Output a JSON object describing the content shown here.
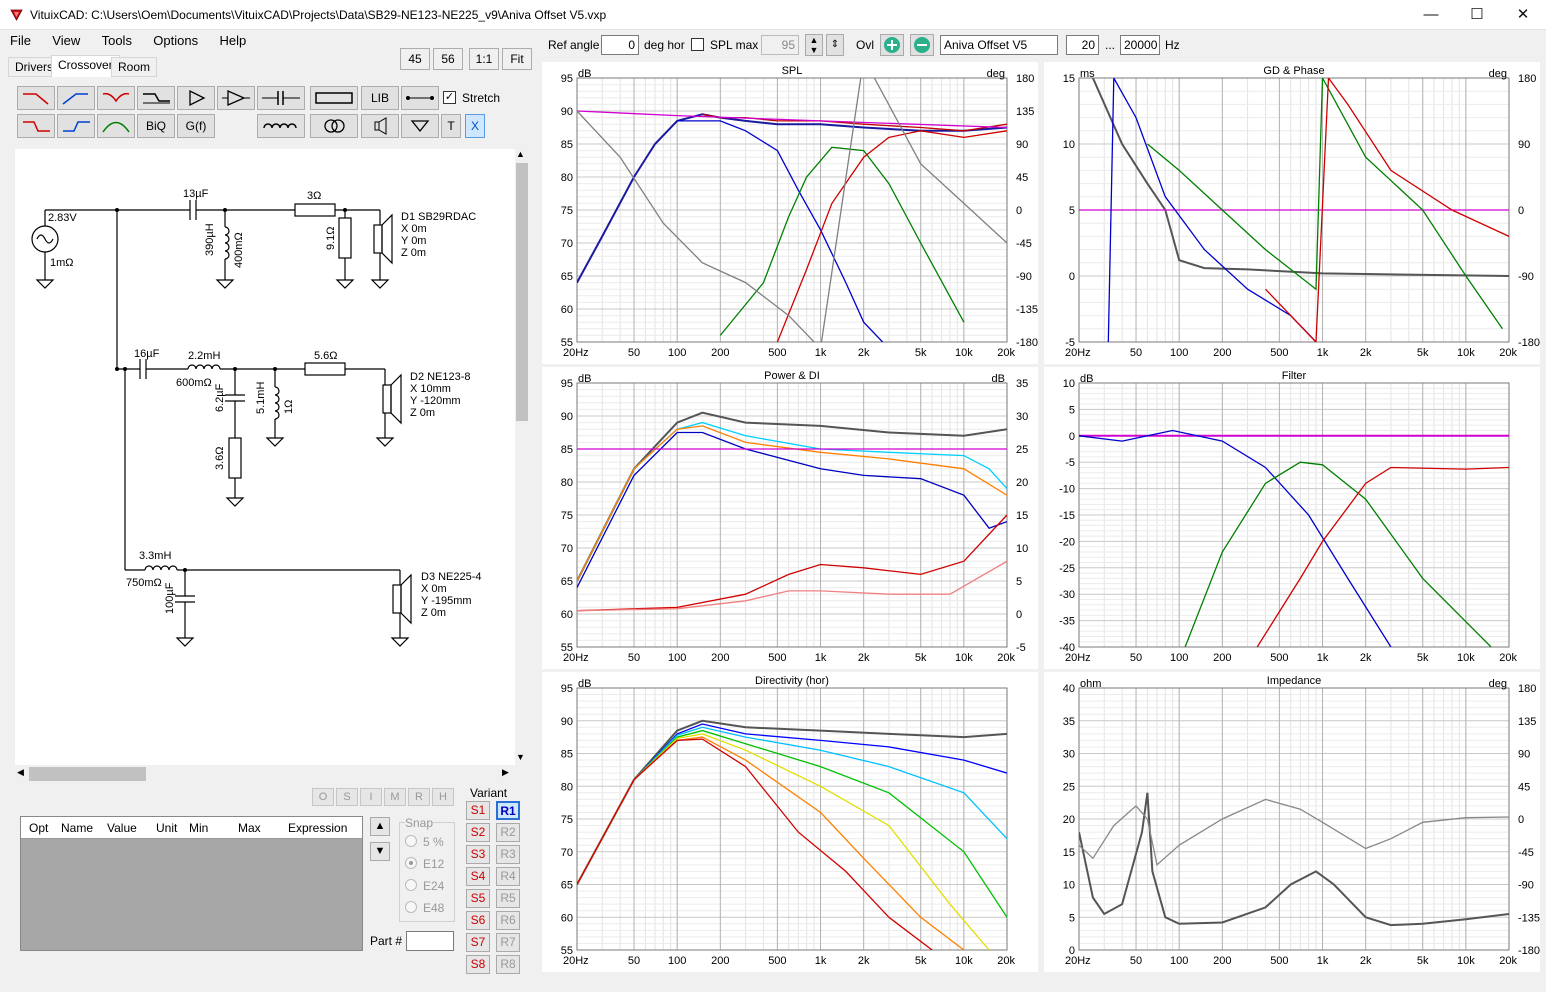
{
  "window": {
    "title": "VituixCAD: C:\\Users\\Oem\\Documents\\VituixCAD\\Projects\\Data\\SB29-NE123-NE225_v9\\Aniva Offset V5.vxp",
    "minimize": "—",
    "maximize": "☐",
    "close": "✕"
  },
  "menu": [
    "File",
    "View",
    "Tools",
    "Options",
    "Help"
  ],
  "tabs": [
    "Drivers",
    "Crossover",
    "Room"
  ],
  "zoom_buttons": [
    "45",
    "56",
    "1:1",
    "Fit"
  ],
  "toolbar": {
    "biq": "BiQ",
    "gf": "G(f)",
    "lib": "LIB",
    "stretch_label": "Stretch",
    "t": "T",
    "x": "X"
  },
  "top_controls": {
    "ref_angle_label": "Ref angle",
    "ref_angle_value": "0",
    "deg_hor_label": "deg hor",
    "spl_max_label": "SPL max",
    "spl_max_value": "95",
    "ovl_label": "Ovl",
    "overlay_name": "Aniva Offset V5",
    "freq_min": "20",
    "ellipsis": "...",
    "freq_max": "20000",
    "hz_label": "Hz"
  },
  "schematic": {
    "source_voltage": "2.83V",
    "source_res": "1mΩ",
    "c1": "13µF",
    "r1": "3Ω",
    "l1": "390µH",
    "l1r": "400mΩ",
    "r2": "9.1Ω",
    "d1_name": "D1 SB29RDAC",
    "d1_x": "X 0m",
    "d1_y": "Y 0m",
    "d1_z": "Z 0m",
    "c2": "16µF",
    "l2": "2.2mH",
    "l2r": "600mΩ",
    "r3": "5.6Ω",
    "c3": "6.2µF",
    "r4": "3.6Ω",
    "l3": "5.1mH",
    "l3r": "1Ω",
    "d2_name": "D2 NE123-8",
    "d2_x": "X 10mm",
    "d2_y": "Y -120mm",
    "d2_z": "Z 0m",
    "l4": "3.3mH",
    "l4r": "750mΩ",
    "c4": "100µF",
    "d3_name": "D3 NE225-4",
    "d3_x": "X 0m",
    "d3_y": "Y -195mm",
    "d3_z": "Z 0m"
  },
  "opt_letters": [
    "O",
    "S",
    "I",
    "M",
    "R",
    "H"
  ],
  "opt_table_headers": [
    "Opt",
    "Name",
    "Value",
    "Unit",
    "Min",
    "Max",
    "Expression"
  ],
  "snap": {
    "title": "Snap",
    "options": [
      "5 %",
      "E12",
      "E24",
      "E48"
    ],
    "selected": "E12"
  },
  "part_label": "Part #",
  "variant": {
    "title": "Variant",
    "s_buttons": [
      "S1",
      "S2",
      "S3",
      "S4",
      "S5",
      "S6",
      "S7",
      "S8"
    ],
    "r_buttons": [
      "R1",
      "R2",
      "R3",
      "R4",
      "R5",
      "R6",
      "R7",
      "R8"
    ],
    "active": "R1"
  },
  "freq_ticks": [
    "20Hz",
    "50",
    "100",
    "200",
    "500",
    "1k",
    "2k",
    "5k",
    "10k",
    "20k"
  ],
  "charts": {
    "spl": {
      "title": "SPL",
      "left_unit": "dB",
      "right_unit": "deg",
      "left_ticks": [
        "95",
        "90",
        "85",
        "80",
        "75",
        "70",
        "65",
        "60",
        "55"
      ],
      "right_ticks": [
        "180",
        "135",
        "90",
        "45",
        "0",
        "-45",
        "-90",
        "-135",
        "-180"
      ]
    },
    "gd": {
      "title": "GD & Phase",
      "left_unit": "ms",
      "right_unit": "deg",
      "left_ticks": [
        "15",
        "10",
        "5",
        "0",
        "-5"
      ],
      "right_ticks": [
        "180",
        "90",
        "0",
        "-90",
        "-180"
      ]
    },
    "power": {
      "title": "Power & DI",
      "left_unit": "dB",
      "right_unit": "dB",
      "left_ticks": [
        "95",
        "90",
        "85",
        "80",
        "75",
        "70",
        "65",
        "60",
        "55"
      ],
      "right_ticks": [
        "35",
        "30",
        "25",
        "20",
        "15",
        "10",
        "5",
        "0",
        "-5"
      ]
    },
    "filter": {
      "title": "Filter",
      "left_unit": "dB",
      "right_unit": "",
      "left_ticks": [
        "10",
        "5",
        "0",
        "-5",
        "-10",
        "-15",
        "-20",
        "-25",
        "-30",
        "-35",
        "-40"
      ],
      "right_ticks": []
    },
    "directivity": {
      "title": "Directivity (hor)",
      "left_unit": "dB",
      "right_unit": "",
      "left_ticks": [
        "95",
        "90",
        "85",
        "80",
        "75",
        "70",
        "65",
        "60",
        "55"
      ],
      "right_ticks": []
    },
    "impedance": {
      "title": "Impedance",
      "left_unit": "ohm",
      "right_unit": "deg",
      "left_ticks": [
        "40",
        "35",
        "30",
        "25",
        "20",
        "15",
        "10",
        "5",
        "0"
      ],
      "right_ticks": [
        "180",
        "135",
        "90",
        "45",
        "0",
        "-45",
        "-90",
        "-135",
        "-180"
      ]
    }
  },
  "chart_data": [
    {
      "type": "line",
      "title": "SPL",
      "xscale": "log",
      "xlim": [
        20,
        20000
      ],
      "ylim": [
        55,
        95
      ],
      "ylabel": "dB",
      "series": [
        {
          "color": "#1a1aa0",
          "x": [
            20,
            30,
            50,
            70,
            100,
            150,
            200,
            300,
            500,
            1000,
            2000,
            5000,
            10000,
            20000
          ],
          "y": [
            64,
            71,
            80,
            85,
            88.5,
            89.5,
            89,
            88.5,
            88,
            88,
            87.5,
            87,
            87,
            87.5
          ]
        },
        {
          "color": "#c00000",
          "x": [
            150,
            200,
            300,
            500,
            1000,
            2000,
            5000,
            10000,
            20000
          ],
          "y": [
            89.5,
            89,
            89,
            88.5,
            88.5,
            88,
            87.5,
            87,
            88
          ]
        },
        {
          "color": "#d000d0",
          "x": [
            20,
            100,
            1000,
            20000
          ],
          "y": [
            90,
            89.3,
            88.5,
            87.5
          ]
        },
        {
          "color": "#0000d0",
          "x": [
            100,
            200,
            300,
            500,
            700,
            1000,
            1500,
            2000,
            3000
          ],
          "y": [
            88.5,
            88.5,
            87,
            84,
            78,
            72,
            64,
            58,
            54
          ]
        },
        {
          "color": "#008000",
          "x": [
            200,
            400,
            600,
            800,
            1200,
            2000,
            3000,
            5000,
            10000
          ],
          "y": [
            56,
            64,
            74,
            80,
            84.5,
            84,
            79,
            70,
            58
          ]
        },
        {
          "color": "#d00000",
          "x": [
            500,
            800,
            1200,
            2000,
            3000,
            5000,
            10000,
            20000
          ],
          "y": [
            55,
            66,
            76,
            83,
            86,
            87,
            86,
            87
          ]
        },
        {
          "color": "#808080",
          "x": [
            20,
            40,
            80,
            150,
            300,
            600,
            1000,
            2000,
            5000,
            10000,
            20000
          ],
          "y": [
            90,
            83,
            73,
            67,
            64,
            59,
            54,
            98,
            82,
            76,
            70
          ]
        }
      ]
    },
    {
      "type": "line",
      "title": "GD & Phase",
      "xscale": "log",
      "xlim": [
        20,
        20000
      ],
      "ylim": [
        -5,
        15
      ],
      "ylabel": "ms",
      "series": [
        {
          "color": "#555555",
          "x": [
            25,
            40,
            60,
            80,
            100,
            150,
            300,
            1000,
            20000
          ],
          "y": [
            15,
            10,
            7,
            5,
            1.2,
            0.6,
            0.5,
            0.2,
            0
          ]
        },
        {
          "color": "#d000d0",
          "x": [
            20,
            20000
          ],
          "y": [
            5,
            5
          ]
        },
        {
          "color": "#0000d0",
          "x": [
            32,
            35,
            50,
            80,
            150,
            300,
            600,
            900
          ],
          "y": [
            -5,
            15,
            12,
            6,
            2,
            -1,
            -3,
            -5
          ]
        },
        {
          "color": "#008000",
          "x": [
            60,
            100,
            200,
            400,
            900,
            1000,
            2000,
            5000,
            10000,
            18000
          ],
          "y": [
            10,
            8,
            5,
            2,
            -1,
            15,
            9,
            5,
            0,
            -4
          ]
        },
        {
          "color": "#d00000",
          "x": [
            400,
            900,
            1100,
            1500,
            3000,
            8000,
            20000
          ],
          "y": [
            -1,
            -5,
            15,
            13,
            8,
            5,
            3
          ]
        }
      ]
    },
    {
      "type": "line",
      "title": "Power & DI",
      "xscale": "log",
      "xlim": [
        20,
        20000
      ],
      "ylim": [
        55,
        95
      ],
      "ylabel": "dB",
      "series": [
        {
          "color": "#555555",
          "x": [
            20,
            50,
            100,
            150,
            300,
            1000,
            3000,
            10000,
            20000
          ],
          "y": [
            65,
            82,
            89,
            90.5,
            89,
            88.5,
            87.5,
            87,
            88
          ]
        },
        {
          "color": "#00d0ff",
          "x": [
            20,
            50,
            100,
            150,
            300,
            1000,
            3000,
            10000,
            15000,
            20000
          ],
          "y": [
            65,
            82,
            88,
            89,
            87,
            85,
            84.5,
            84,
            82,
            79
          ]
        },
        {
          "color": "#ff8000",
          "x": [
            20,
            50,
            100,
            150,
            300,
            1000,
            3000,
            10000,
            20000
          ],
          "y": [
            65,
            82,
            88,
            88.5,
            86,
            84.5,
            83.5,
            82,
            78
          ]
        },
        {
          "color": "#0000c0",
          "x": [
            20,
            50,
            100,
            150,
            300,
            1000,
            2000,
            5000,
            10000,
            15000,
            20000
          ],
          "y": [
            64,
            81,
            87.5,
            87.5,
            85,
            82,
            81,
            80.5,
            78,
            73,
            74
          ]
        },
        {
          "color": "#d000d0",
          "x": [
            20,
            20000
          ],
          "y": [
            85,
            85
          ]
        },
        {
          "color": "#d00000",
          "x": [
            20,
            100,
            300,
            600,
            1000,
            2000,
            5000,
            10000,
            20000
          ],
          "y": [
            60.5,
            61,
            63,
            66,
            67.5,
            67,
            66,
            68,
            75
          ]
        },
        {
          "color": "#f08080",
          "x": [
            20,
            100,
            300,
            600,
            1000,
            3000,
            8000,
            20000
          ],
          "y": [
            60.5,
            60.8,
            62,
            63.5,
            63.5,
            63,
            63,
            68
          ]
        }
      ]
    },
    {
      "type": "line",
      "title": "Filter",
      "xscale": "log",
      "xlim": [
        20,
        20000
      ],
      "ylim": [
        -40,
        10
      ],
      "ylabel": "dB",
      "series": [
        {
          "color": "#d000d0",
          "x": [
            20,
            20000
          ],
          "y": [
            0,
            0
          ]
        },
        {
          "color": "#0000d0",
          "x": [
            20,
            40,
            90,
            200,
            400,
            800,
            1500,
            3000
          ],
          "y": [
            0,
            -1,
            1,
            -1,
            -6,
            -15,
            -27,
            -40
          ]
        },
        {
          "color": "#008000",
          "x": [
            110,
            200,
            400,
            700,
            1000,
            2000,
            5000,
            15000
          ],
          "y": [
            -40,
            -22,
            -9,
            -5,
            -5.5,
            -12,
            -27,
            -40
          ]
        },
        {
          "color": "#d00000",
          "x": [
            350,
            700,
            1000,
            2000,
            3000,
            10000,
            20000
          ],
          "y": [
            -40,
            -27,
            -20,
            -9,
            -6,
            -6.3,
            -6
          ]
        }
      ]
    },
    {
      "type": "line",
      "title": "Directivity (hor)",
      "xscale": "log",
      "xlim": [
        20,
        20000
      ],
      "ylim": [
        55,
        95
      ],
      "ylabel": "dB",
      "series": [
        {
          "color": "#555555",
          "x": [
            20,
            50,
            100,
            150,
            300,
            1000,
            3000,
            10000,
            20000
          ],
          "y": [
            65,
            81,
            88.5,
            90,
            89,
            88.5,
            88,
            87.5,
            88
          ]
        },
        {
          "color": "#0000ff",
          "x": [
            20,
            50,
            100,
            150,
            300,
            1000,
            3000,
            10000,
            20000
          ],
          "y": [
            65,
            81,
            88,
            89.5,
            88,
            87,
            86,
            84,
            82
          ]
        },
        {
          "color": "#00c0ff",
          "x": [
            20,
            50,
            100,
            150,
            300,
            1000,
            3000,
            10000,
            20000
          ],
          "y": [
            65,
            81,
            87.8,
            89,
            87.5,
            85.5,
            83,
            79,
            72
          ]
        },
        {
          "color": "#00c000",
          "x": [
            20,
            50,
            100,
            150,
            300,
            1000,
            3000,
            10000,
            20000
          ],
          "y": [
            65,
            81,
            87.5,
            88.5,
            86.5,
            83,
            79,
            70,
            60
          ]
        },
        {
          "color": "#e0e000",
          "x": [
            20,
            50,
            100,
            150,
            300,
            1000,
            3000,
            8000,
            15000
          ],
          "y": [
            65,
            81,
            87.3,
            88,
            85.5,
            80,
            74,
            62,
            55
          ]
        },
        {
          "color": "#ff8000",
          "x": [
            20,
            50,
            100,
            150,
            300,
            1000,
            2000,
            5000,
            10000
          ],
          "y": [
            65,
            81,
            87,
            87.5,
            84,
            76,
            69,
            60,
            55
          ]
        },
        {
          "color": "#d00000",
          "x": [
            20,
            50,
            100,
            150,
            300,
            700,
            1500,
            3000,
            6000
          ],
          "y": [
            65,
            81,
            87,
            87.2,
            83,
            73,
            67,
            60,
            55
          ]
        }
      ]
    },
    {
      "type": "line",
      "title": "Impedance",
      "xscale": "log",
      "xlim": [
        20,
        20000
      ],
      "ylim": [
        0,
        40
      ],
      "ylabel": "ohm",
      "series": [
        {
          "color": "#555555",
          "x": [
            20,
            25,
            30,
            40,
            55,
            60,
            65,
            80,
            100,
            200,
            400,
            600,
            900,
            1200,
            2000,
            3000,
            5000,
            10000,
            20000
          ],
          "y": [
            18,
            8,
            5.5,
            7,
            18,
            24,
            12,
            5,
            4,
            4.2,
            6.5,
            10,
            12,
            10,
            5,
            3.8,
            4,
            4.7,
            5.5
          ]
        },
        {
          "color": "#888888",
          "x": [
            20,
            25,
            35,
            50,
            60,
            70,
            100,
            200,
            400,
            700,
            1000,
            2000,
            3000,
            5000,
            10000,
            20000
          ],
          "y": [
            16,
            14,
            19,
            22,
            20,
            13,
            16,
            20,
            23,
            21.5,
            19.5,
            15.5,
            17,
            19.5,
            20.2,
            20.3
          ]
        }
      ]
    }
  ]
}
